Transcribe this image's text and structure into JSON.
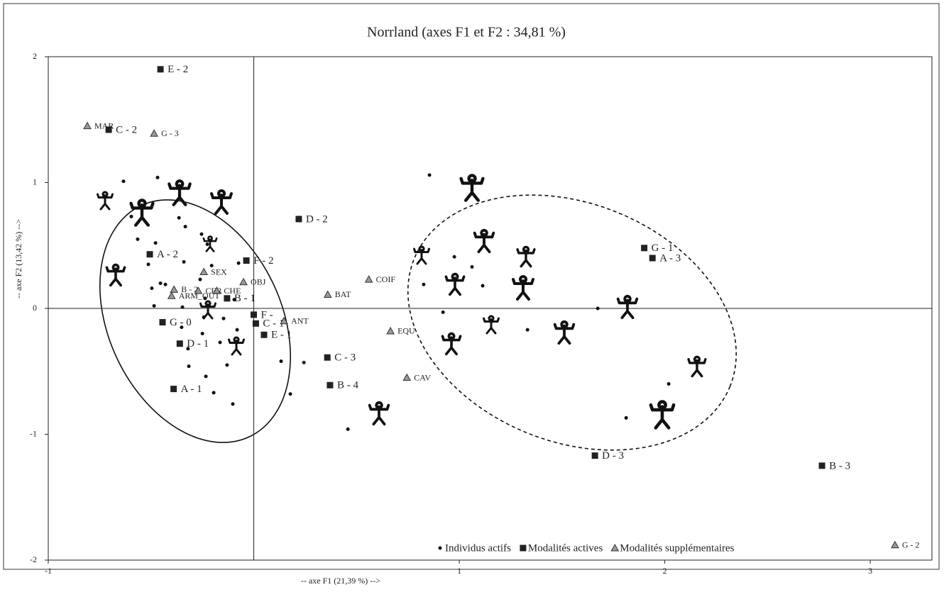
{
  "chart_data": {
    "type": "scatter",
    "title": "Norrland (axes F1 et F2 : 34,81 %)",
    "x_label": "-- axe F1 (21,39 %) -->",
    "y_label": "-- axe F2 (13,42 %) -->",
    "xlim": [
      -1,
      3.3
    ],
    "ylim": [
      -2,
      2
    ],
    "xticks": [
      -1,
      1,
      2,
      3
    ],
    "yticks": [
      -2,
      -1,
      0,
      1,
      2
    ],
    "legend": "lower right",
    "series": [
      {
        "name": "Individus actifs",
        "color": "#111",
        "marker": "circle",
        "x": [
          -0.634,
          -0.468,
          -0.596,
          -0.364,
          -0.565,
          -0.333,
          -0.478,
          -0.254,
          -0.226,
          -0.513,
          -0.34,
          -0.454,
          -0.496,
          -0.485,
          -0.347,
          -0.261,
          -0.205,
          -0.074,
          -0.237,
          -0.095,
          -0.147,
          -0.243,
          -0.351,
          -0.25,
          -0.164,
          -0.32,
          -0.081,
          -0.316,
          -0.233,
          -0.195,
          -0.13,
          -0.102,
          0.133,
          0.244,
          0.178,
          0.458,
          -0.43,
          0.855,
          0.976,
          1.062,
          0.827,
          1.114,
          0.921,
          1.332,
          1.674,
          2.019,
          1.812
        ],
        "y": [
          1.01,
          1.04,
          0.73,
          0.72,
          0.55,
          0.65,
          0.52,
          0.59,
          0.51,
          0.35,
          0.37,
          0.2,
          0.16,
          0.02,
          0.01,
          0.23,
          0.34,
          0.36,
          0.08,
          0.07,
          -0.08,
          -0.07,
          -0.15,
          -0.2,
          -0.27,
          -0.32,
          -0.17,
          -0.46,
          -0.54,
          -0.67,
          -0.45,
          -0.76,
          -0.42,
          -0.43,
          -0.68,
          -0.96,
          0.19,
          1.06,
          0.41,
          0.33,
          0.19,
          0.18,
          -0.03,
          -0.17,
          0,
          -0.6,
          -0.87
        ]
      },
      {
        "name": "Modalités actives",
        "color": "#222",
        "marker": "square",
        "x": [
          -0.454,
          -0.706,
          0.219,
          -0.506,
          -0.036,
          -0.13,
          0,
          0.01,
          -0.444,
          0.05,
          0.358,
          -0.36,
          0.371,
          -0.39,
          1.9,
          1.94,
          1.66,
          2.765
        ],
        "y": [
          1.9,
          1.42,
          0.71,
          0.43,
          0.38,
          0.08,
          -0.05,
          -0.12,
          -0.11,
          -0.21,
          -0.39,
          -0.28,
          -0.61,
          -0.64,
          0.48,
          0.4,
          -1.17,
          -1.25
        ],
        "labels": [
          "E - 2",
          "C - 2",
          "D - 2",
          "A - 2",
          "F - 2",
          "B - 1",
          "F -",
          "C - 1",
          "G - 0",
          "E - 1",
          "C - 3",
          "D - 1",
          "B - 4",
          "A - 1",
          "G - 1",
          "A - 3",
          "D - 3",
          "B - 3"
        ]
      },
      {
        "name": "Modalités supplémentaires",
        "color": "#999",
        "marker": "triangle",
        "x": [
          -0.81,
          -0.485,
          -0.243,
          -0.05,
          -0.388,
          -0.27,
          -0.18,
          -0.4,
          0.36,
          0.56,
          0.147,
          0.665,
          0.745,
          3.12
        ],
        "y": [
          1.45,
          1.39,
          0.29,
          0.21,
          0.15,
          0.14,
          0.14,
          0.1,
          0.11,
          0.23,
          -0.1,
          -0.18,
          -0.55,
          -1.88
        ],
        "labels": [
          "MAR",
          "G - 3",
          "SEX",
          "OBJ",
          "B - 2",
          "CER",
          "CHE",
          "ARM_OUT",
          "BAT",
          "COIF",
          "ANT",
          "EQU",
          "CAV",
          "G - 2"
        ]
      }
    ]
  }
}
